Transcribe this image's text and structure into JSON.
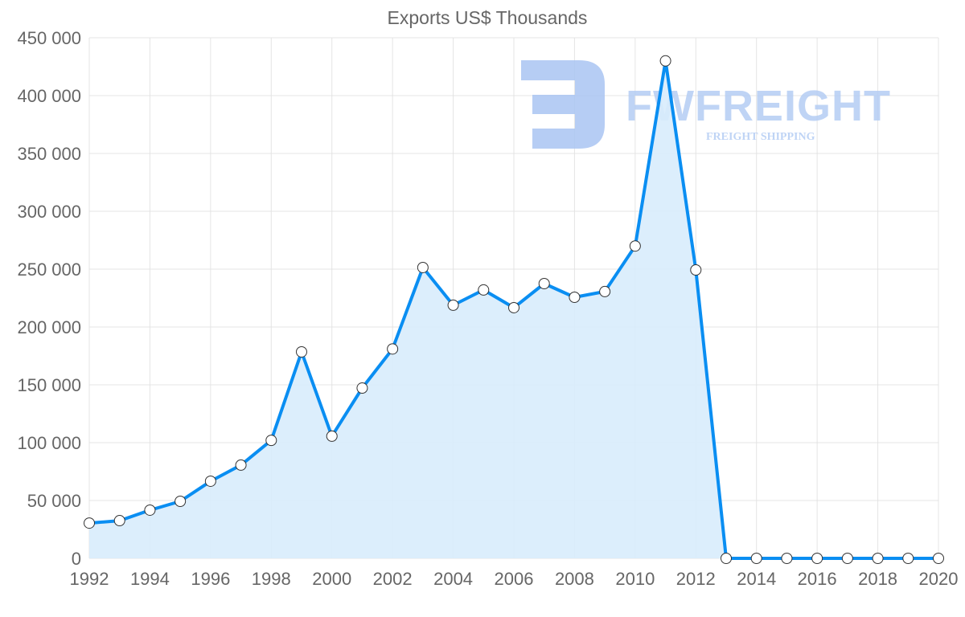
{
  "chart_data": {
    "type": "area",
    "title": "Exports US$ Thousands",
    "xlabel": "",
    "ylabel": "",
    "ylim": [
      0,
      450000
    ],
    "yticks": [
      0,
      50000,
      100000,
      150000,
      200000,
      250000,
      300000,
      350000,
      400000,
      450000
    ],
    "ytick_labels": [
      "0",
      "50 000",
      "100 000",
      "150 000",
      "200 000",
      "250 000",
      "300 000",
      "350 000",
      "400 000",
      "450 000"
    ],
    "xlim": [
      1992,
      2020
    ],
    "xtick_labels": [
      "1992",
      "1994",
      "1996",
      "1998",
      "2000",
      "2002",
      "2004",
      "2006",
      "2008",
      "2010",
      "2012",
      "2014",
      "2016",
      "2018",
      "2020"
    ],
    "grid": true,
    "legend": "none",
    "series": [
      {
        "name": "Exports US$ Thousands",
        "color": "#0a8ef2",
        "fill": "#d8ecfc",
        "x": [
          1992,
          1993,
          1994,
          1995,
          1996,
          1997,
          1998,
          1999,
          2000,
          2001,
          2002,
          2003,
          2004,
          2005,
          2006,
          2007,
          2008,
          2009,
          2010,
          2011,
          2012,
          2013,
          2014,
          2015,
          2016,
          2017,
          2018,
          2019,
          2020
        ],
        "values": [
          30500,
          32600,
          41700,
          49300,
          66700,
          80600,
          102000,
          178500,
          105600,
          147200,
          181000,
          251400,
          218800,
          232000,
          216700,
          237500,
          225700,
          230600,
          270000,
          430000,
          249300,
          0,
          0,
          0,
          0,
          0,
          0,
          0,
          0
        ]
      }
    ]
  },
  "watermark": {
    "brand": "FWFREIGHT",
    "tagline": "FREIGHT SHIPPING",
    "color": "#a9c4f2"
  }
}
